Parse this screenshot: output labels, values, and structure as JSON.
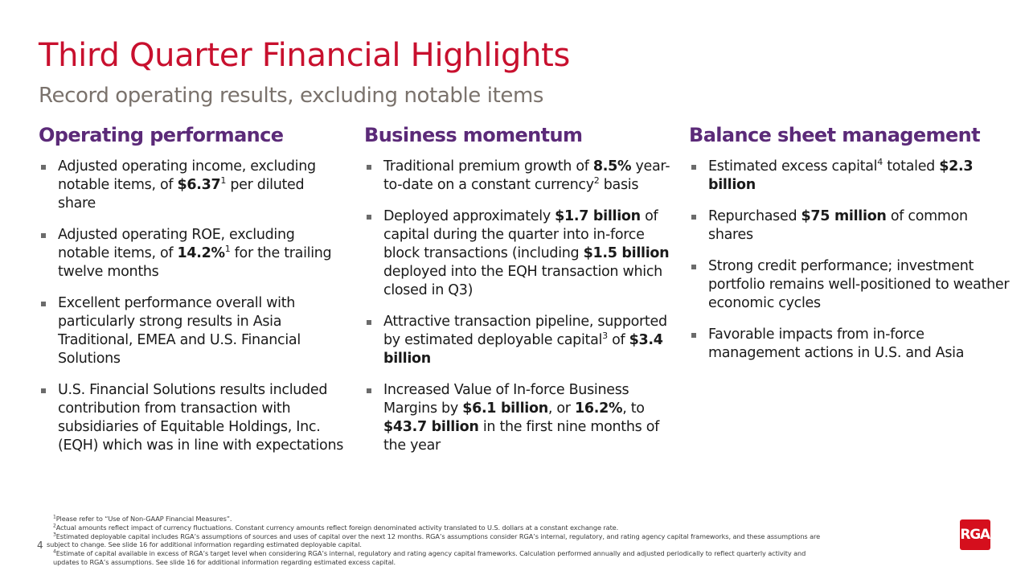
{
  "slide": {
    "title": "Third Quarter Financial Highlights",
    "subtitle": "Record operating results, excluding notable items",
    "page_number": "4",
    "logo_text": "RGA",
    "colors": {
      "title": "#c8102e",
      "subtitle": "#7a726c",
      "heading": "#5b2a78",
      "logo_bg": "#d50f1d",
      "bullet": "#6b6b6b"
    }
  },
  "columns": [
    {
      "heading": "Operating performance",
      "items": [
        {
          "parts": [
            {
              "t": "Adjusted operating income, excluding notable items, of "
            },
            {
              "t": "$6.37",
              "bold": true
            },
            {
              "t": "1",
              "sup": true
            },
            {
              "t": " per diluted share"
            }
          ]
        },
        {
          "parts": [
            {
              "t": "Adjusted operating ROE, excluding notable items, of "
            },
            {
              "t": "14.2%",
              "bold": true
            },
            {
              "t": "1",
              "sup": true
            },
            {
              "t": " for the trailing twelve months"
            }
          ]
        },
        {
          "parts": [
            {
              "t": "Excellent performance overall with particularly strong results in Asia Traditional, EMEA and U.S. Financial Solutions"
            }
          ]
        },
        {
          "parts": [
            {
              "t": "U.S. Financial Solutions results included contribution from transaction with subsidiaries of Equitable Holdings, Inc. (EQH) which was in line with expectations"
            }
          ]
        }
      ]
    },
    {
      "heading": "Business momentum",
      "items": [
        {
          "parts": [
            {
              "t": "Traditional premium growth of "
            },
            {
              "t": "8.5%",
              "bold": true
            },
            {
              "t": " year-to-date on a constant currency"
            },
            {
              "t": "2",
              "sup": true
            },
            {
              "t": " basis"
            }
          ]
        },
        {
          "parts": [
            {
              "t": "Deployed approximately "
            },
            {
              "t": "$1.7 billion",
              "bold": true
            },
            {
              "t": " of capital during the quarter into in-force block transactions (including "
            },
            {
              "t": "$1.5 billion",
              "bold": true
            },
            {
              "t": " deployed into the EQH transaction which closed in Q3)"
            }
          ]
        },
        {
          "parts": [
            {
              "t": "Attractive transaction pipeline, supported by estimated deployable capital"
            },
            {
              "t": "3",
              "sup": true
            },
            {
              "t": " of "
            },
            {
              "t": "$3.4 billion",
              "bold": true
            }
          ]
        },
        {
          "parts": [
            {
              "t": "Increased Value of In-force Business Margins by "
            },
            {
              "t": "$6.1 billion",
              "bold": true
            },
            {
              "t": ", or "
            },
            {
              "t": "16.2%",
              "bold": true
            },
            {
              "t": ", to "
            },
            {
              "t": "$43.7 billion",
              "bold": true
            },
            {
              "t": " in the first nine months of the year"
            }
          ]
        }
      ]
    },
    {
      "heading": "Balance sheet management",
      "items": [
        {
          "parts": [
            {
              "t": "Estimated excess capital"
            },
            {
              "t": "4",
              "sup": true
            },
            {
              "t": " totaled "
            },
            {
              "t": "$2.3 billion",
              "bold": true
            }
          ]
        },
        {
          "parts": [
            {
              "t": "Repurchased "
            },
            {
              "t": "$75 million",
              "bold": true
            },
            {
              "t": " of common shares"
            }
          ]
        },
        {
          "parts": [
            {
              "t": "Strong credit performance; investment portfolio remains well-positioned to weather economic cycles"
            }
          ]
        },
        {
          "parts": [
            {
              "t": "Favorable impacts from in-force management actions in U.S. and Asia"
            }
          ]
        }
      ]
    }
  ],
  "footnotes": [
    {
      "num": "1",
      "lines": [
        "Please refer to “Use of Non-GAAP Financial Measures”."
      ]
    },
    {
      "num": "2",
      "lines": [
        "Actual amounts reflect impact of currency fluctuations. Constant currency amounts reflect foreign denominated activity translated to U.S. dollars at a constant exchange rate."
      ]
    },
    {
      "num": "3",
      "lines": [
        "Estimated deployable capital includes RGA’s assumptions of sources and uses of capital over the next 12 months. RGA’s assumptions consider RGA’s internal, regulatory, and rating agency capital frameworks, and these assumptions are",
        "subject to change. See slide 16 for additional information regarding estimated deployable capital."
      ]
    },
    {
      "num": "4",
      "lines": [
        "Estimate of capital available in excess of RGA’s target level when considering RGA’s internal, regulatory and rating agency capital frameworks.  Calculation performed annually and adjusted periodically to reflect quarterly activity and",
        " updates to RGA’s assumptions. See slide 16 for additional information regarding estimated excess capital."
      ]
    }
  ]
}
